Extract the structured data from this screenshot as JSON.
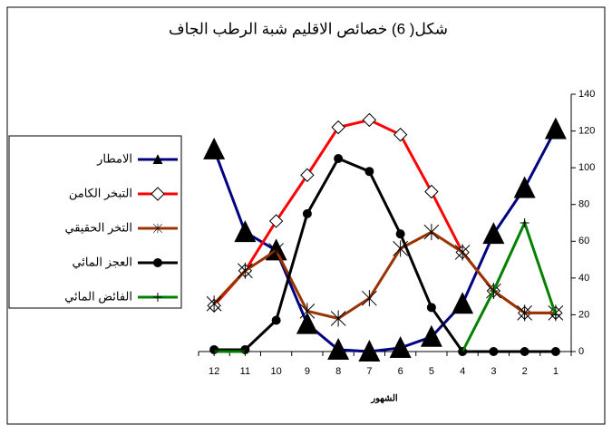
{
  "chart_data": {
    "type": "line",
    "title": "شكل( 6) خصائص الاقليم شبة الرطب الجاف",
    "x_label": "الشهور",
    "categories": [
      "12",
      "11",
      "10",
      "9",
      "8",
      "7",
      "6",
      "5",
      "4",
      "3",
      "2",
      "1"
    ],
    "ylim": [
      0,
      140
    ],
    "yticks": [
      0,
      20,
      40,
      60,
      80,
      100,
      120,
      140
    ],
    "y_axis_side": "right",
    "legend": "left",
    "series": [
      {
        "name": "الامطار",
        "color": "#000080",
        "marker": "triangle",
        "values": [
          110,
          65,
          55,
          15,
          1,
          0,
          2,
          8,
          26,
          64,
          89,
          121
        ]
      },
      {
        "name": "التبخر الكامن",
        "color": "#ff0000",
        "marker": "diamond",
        "values": [
          25,
          44,
          71,
          96,
          122,
          126,
          118,
          87,
          54,
          33,
          21,
          21
        ]
      },
      {
        "name": "التخر الحقيقي",
        "color": "#993300",
        "marker": "asterisk",
        "values": [
          26,
          44,
          55,
          22,
          18,
          29,
          56,
          65,
          54,
          33,
          21,
          21
        ]
      },
      {
        "name": "العجز المائي",
        "color": "#000000",
        "marker": "circle",
        "values": [
          1,
          1,
          17,
          75,
          105,
          98,
          64,
          24,
          0,
          0,
          0,
          0
        ]
      },
      {
        "name": "الفائض المائي",
        "color": "#008000",
        "marker": "plus",
        "values": [
          0,
          0,
          null,
          null,
          null,
          null,
          null,
          null,
          0,
          33,
          70,
          20
        ]
      }
    ]
  }
}
